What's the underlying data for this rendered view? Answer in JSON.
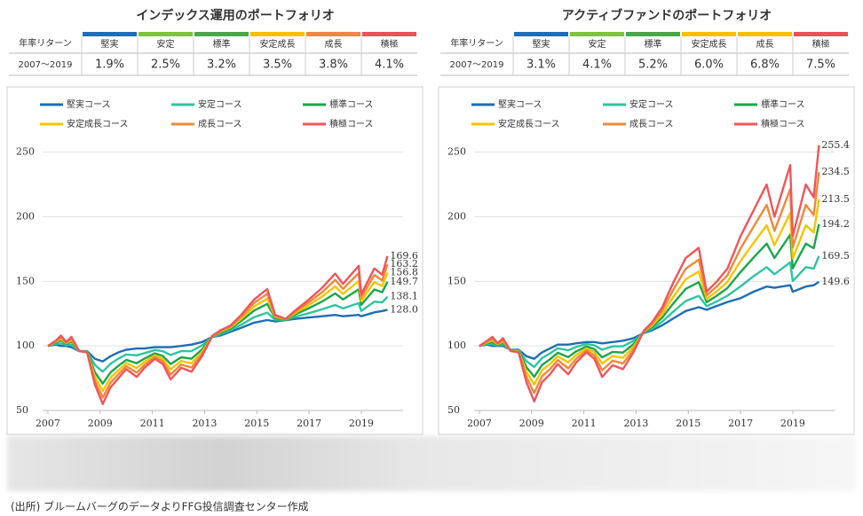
{
  "chart_data": [
    {
      "type": "line",
      "title": "インデックス運用のポートフォリオ",
      "table": {
        "header_label": "年率リターン",
        "columns": [
          "堅実",
          "安定",
          "標準",
          "安定成長",
          "成長",
          "積極"
        ],
        "header_colors": [
          "#1f6db4",
          "#7dc242",
          "#4aa64a",
          "#f5c000",
          "#e8894a",
          "#e8525a"
        ],
        "row_label": "2007～2019",
        "row_values": [
          "1.9%",
          "2.5%",
          "3.2%",
          "3.5%",
          "3.8%",
          "4.1%"
        ]
      },
      "xlim": [
        2006.9,
        2020.6
      ],
      "xticks": [
        2007,
        2009,
        2011,
        2013,
        2015,
        2017,
        2019
      ],
      "ylim": [
        50,
        258
      ],
      "yticks": [
        50,
        100,
        150,
        200,
        250
      ],
      "grid": true,
      "x": [
        2007,
        2007.3,
        2007.5,
        2007.7,
        2007.9,
        2008.2,
        2008.5,
        2008.8,
        2009.1,
        2009.4,
        2009.7,
        2010,
        2010.4,
        2010.7,
        2011.1,
        2011.4,
        2011.7,
        2012.1,
        2012.5,
        2012.9,
        2013.3,
        2013.6,
        2014,
        2014.4,
        2014.9,
        2015.4,
        2015.7,
        2016.1,
        2016.5,
        2017,
        2017.5,
        2018,
        2018.3,
        2018.9,
        2019,
        2019.5,
        2019.8,
        2020
      ],
      "series": [
        {
          "name": "堅実コース",
          "color": "#1f6db4",
          "end_label": "128.0",
          "values": [
            100,
            101,
            100,
            100,
            99,
            96,
            96,
            90,
            88,
            92,
            95,
            97,
            98,
            98,
            99,
            99,
            99,
            100,
            101,
            103,
            107,
            108,
            111,
            114,
            118,
            120,
            119,
            120,
            121,
            122,
            123,
            124,
            123,
            124,
            123,
            126,
            127,
            128.0
          ]
        },
        {
          "name": "安定コース",
          "color": "#2ec4a0",
          "end_label": "138.1",
          "values": [
            100,
            101.7,
            101.9,
            100.7,
            100.9,
            96,
            95.8,
            85.2,
            80.1,
            86.2,
            90.2,
            93.4,
            92.7,
            94.4,
            96.8,
            95.9,
            93,
            95.9,
            96,
            100.4,
            107.2,
            109,
            112.2,
            116.4,
            122.3,
            125.8,
            120.2,
            120.2,
            122.7,
            125.4,
            128.3,
            131.7,
            129,
            133.1,
            127.1,
            134.2,
            133.7,
            138.1
          ]
        },
        {
          "name": "標準コース",
          "color": "#1aa64a",
          "end_label": "149.7",
          "values": [
            100,
            102.6,
            104.2,
            101.6,
            103.2,
            96,
            95.5,
            79.6,
            70.8,
            79.5,
            84.6,
            89.2,
            86.6,
            90.2,
            94.3,
            92.2,
            86,
            91.2,
            90.1,
            97.3,
            107.5,
            110.1,
            113.6,
            119.2,
            127.4,
            132.5,
            121.6,
            120.5,
            124.6,
            129.3,
            134.4,
            140.6,
            136,
            143.8,
            131.8,
            143.7,
            141.6,
            149.7
          ]
        },
        {
          "name": "安定成長コース",
          "color": "#f5c400",
          "end_label": "156.8",
          "values": [
            100,
            103.1,
            105.5,
            102.1,
            104.5,
            96,
            95.3,
            76.2,
            65.2,
            75.4,
            81.2,
            86.7,
            82.8,
            87.7,
            92.8,
            90,
            81.8,
            88.3,
            86.5,
            95.4,
            107.7,
            110.8,
            114.5,
            120.9,
            130.5,
            136.6,
            122.5,
            120.7,
            125.8,
            131.7,
            138.2,
            146.1,
            140.3,
            150.2,
            134.7,
            149.5,
            146.3,
            156.8
          ]
        },
        {
          "name": "成長コース",
          "color": "#f0883a",
          "end_label": "163.2",
          "values": [
            100,
            103.5,
            106.8,
            102.5,
            105.8,
            96,
            95.2,
            73,
            60,
            71.6,
            78,
            84.3,
            79.3,
            85.3,
            91.4,
            88,
            77.8,
            85.6,
            83.2,
            93.7,
            107.9,
            111.4,
            115.2,
            122.5,
            133.3,
            140.4,
            123.2,
            120.9,
            126.9,
            133.9,
            141.6,
            151.1,
            144.2,
            156.3,
            137.4,
            154.9,
            150.8,
            163.2
          ]
        },
        {
          "name": "積極コース",
          "color": "#f0555a",
          "end_label": "169.6",
          "values": [
            100,
            104,
            108,
            103,
            107,
            96,
            95,
            70,
            55,
            68,
            75,
            82,
            76,
            83,
            90,
            86,
            74,
            83,
            80,
            92,
            108,
            112,
            116,
            124,
            136,
            144,
            124,
            121,
            128,
            136,
            145,
            156,
            148,
            162,
            140,
            160,
            155,
            169.6
          ]
        }
      ]
    },
    {
      "type": "line",
      "title": "アクティブファンドのポートフォリオ",
      "table": {
        "header_label": "年率リターン",
        "columns": [
          "堅実",
          "安定",
          "標準",
          "安定成長",
          "成長",
          "積極"
        ],
        "header_colors": [
          "#1f6db4",
          "#7dc242",
          "#4aa64a",
          "#f5c000",
          "#f5c000",
          "#e8525a"
        ],
        "row_label": "2007～2019",
        "row_values": [
          "3.1%",
          "4.1%",
          "5.2%",
          "6.0%",
          "6.8%",
          "7.5%"
        ]
      },
      "xlim": [
        2006.9,
        2020.6
      ],
      "xticks": [
        2007,
        2009,
        2011,
        2013,
        2015,
        2017,
        2019
      ],
      "ylim": [
        50,
        258
      ],
      "yticks": [
        50,
        100,
        150,
        200,
        250
      ],
      "grid": true,
      "x": [
        2007,
        2007.3,
        2007.5,
        2007.7,
        2007.9,
        2008.2,
        2008.5,
        2008.8,
        2009.1,
        2009.4,
        2009.7,
        2010,
        2010.4,
        2010.7,
        2011.1,
        2011.4,
        2011.7,
        2012.1,
        2012.5,
        2012.9,
        2013.3,
        2013.6,
        2014,
        2014.4,
        2014.9,
        2015.4,
        2015.7,
        2016.1,
        2016.5,
        2017,
        2017.5,
        2018,
        2018.3,
        2018.9,
        2019,
        2019.5,
        2019.8,
        2020
      ],
      "series": [
        {
          "name": "堅実コース",
          "color": "#1f6db4",
          "end_label": "149.6",
          "values": [
            100,
            101,
            100,
            100,
            100,
            97,
            97,
            92,
            90,
            95,
            98,
            101,
            101,
            102,
            103,
            103,
            102,
            103,
            104,
            106,
            110,
            112,
            116,
            121,
            127,
            130,
            128,
            131,
            134,
            137,
            142,
            146,
            145,
            147,
            142,
            146,
            147,
            149.6
          ]
        },
        {
          "name": "安定コース",
          "color": "#2ec4a0",
          "end_label": "169.5",
          "values": [
            100,
            101.6,
            101.3,
            100.4,
            101.1,
            96.8,
            96.6,
            88.2,
            83.7,
            90.6,
            94.2,
            98.2,
            96.6,
            99.2,
            101.5,
            100.5,
            97.1,
            99.6,
            99.8,
            103.9,
            110.4,
            113.1,
            118.7,
            126.1,
            134.8,
            138.7,
            130.7,
            134.6,
            138.9,
            146.1,
            154,
            161,
            155.5,
            164.7,
            150.2,
            161,
            159.9,
            169.5
          ]
        },
        {
          "name": "標準コース",
          "color": "#1aa64a",
          "end_label": "194.2",
          "values": [
            100,
            102.3,
            102.9,
            100.8,
            102.5,
            96.6,
            96.2,
            83.6,
            76.1,
            85.3,
            89.6,
            94.7,
            91.3,
            95.7,
            99.6,
            97.5,
            91.1,
            95.4,
            94.8,
            101.4,
            110.8,
            114.5,
            121.9,
            132.3,
            144.2,
            149.3,
            133.9,
            139,
            144.9,
            157.2,
            168.5,
            179.2,
            168.1,
            186.1,
            160.1,
            179.2,
            175.6,
            194.2
          ]
        },
        {
          "name": "安定成長コース",
          "color": "#f5c400",
          "end_label": "213.5",
          "values": [
            100,
            102.8,
            104.2,
            101.2,
            103.6,
            96.4,
            95.8,
            80,
            70.2,
            81.2,
            86,
            92,
            87.2,
            93,
            98.2,
            95.2,
            86.4,
            92.2,
            90.8,
            99.4,
            111.2,
            115.6,
            124.4,
            137.2,
            151.6,
            157.6,
            136.4,
            142.4,
            149.6,
            165.8,
            179.8,
            193.4,
            178,
            202.8,
            167.8,
            193.4,
            187.8,
            213.5
          ]
        },
        {
          "name": "成長コース",
          "color": "#f0883a",
          "end_label": "234.5",
          "values": [
            100,
            103.4,
            105.6,
            101.6,
            104.8,
            96.2,
            95.4,
            76,
            63.6,
            76.6,
            82,
            89,
            82.6,
            90,
            96.6,
            92.6,
            81.2,
            88.6,
            86.4,
            97.2,
            111.6,
            116.8,
            127.2,
            142.6,
            159.8,
            166.8,
            139.2,
            146.2,
            154.8,
            175.4,
            192.4,
            209.2,
            189,
            221.4,
            176.4,
            209.2,
            201.4,
            234.5
          ]
        },
        {
          "name": "積極コース",
          "color": "#f0555a",
          "end_label": "255.4",
          "values": [
            100,
            104,
            107,
            102,
            106,
            96,
            95,
            72,
            57,
            72,
            78,
            86,
            78,
            87,
            95,
            90,
            76,
            85,
            82,
            95,
            112,
            118,
            130,
            148,
            168,
            176,
            142,
            150,
            160,
            185,
            205,
            225,
            200,
            240,
            185,
            225,
            215,
            255.4
          ]
        }
      ]
    }
  ],
  "note": "(出所) ブルームバーグのデータよりFFG投信調査センター作成"
}
